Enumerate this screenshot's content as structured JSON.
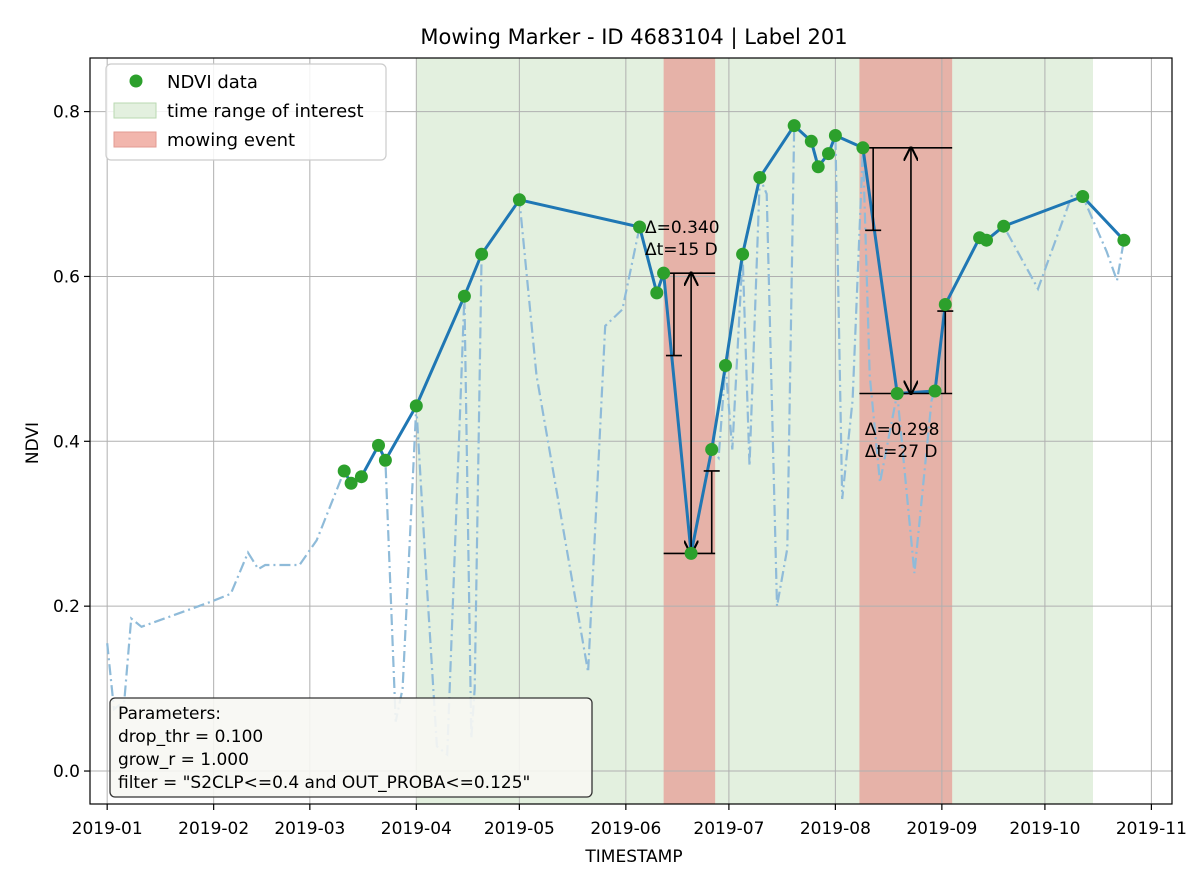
{
  "chart_data": {
    "type": "line",
    "title": "Mowing Marker - ID 4683104 | Label 201",
    "xlabel": "TIMESTAMP",
    "ylabel": "NDVI",
    "xlim": [
      "2018-12-27",
      "2019-11-07"
    ],
    "ylim": [
      -0.04,
      0.865
    ],
    "grid": true,
    "x_ticks": [
      "2019-01-01",
      "2019-02-01",
      "2019-03-01",
      "2019-04-01",
      "2019-05-01",
      "2019-06-01",
      "2019-07-01",
      "2019-08-01",
      "2019-09-01",
      "2019-10-01",
      "2019-11-01"
    ],
    "x_tick_labels": [
      "2019-01",
      "2019-02",
      "2019-03",
      "2019-04",
      "2019-05",
      "2019-06",
      "2019-07",
      "2019-08",
      "2019-09",
      "2019-10",
      "2019-11"
    ],
    "y_ticks": [
      0.0,
      0.2,
      0.4,
      0.6,
      0.8
    ],
    "y_tick_labels": [
      "0.0",
      "0.2",
      "0.4",
      "0.6",
      "0.8"
    ],
    "legend": {
      "placement": "top-left",
      "entries": [
        "NDVI data",
        "time range of interest",
        "mowing event"
      ]
    },
    "colors": {
      "ndvi_line": "#1f77b4",
      "ndvi_marker": "#2ca02c",
      "raw_line": "#8fbbd9",
      "interest": "#e3f0df",
      "mowing": "#e6b2a8",
      "arrow": "#000000"
    },
    "time_range_of_interest": [
      "2019-04-01",
      "2019-10-15"
    ],
    "mowing_events": [
      {
        "start": "2019-06-12",
        "end": "2019-06-27"
      },
      {
        "start": "2019-08-08",
        "end": "2019-09-04"
      }
    ],
    "series": [
      {
        "name": "NDVI data",
        "style": "solid-markers",
        "x": [
          "2019-03-11",
          "2019-03-13",
          "2019-03-16",
          "2019-03-21",
          "2019-03-23",
          "2019-04-01",
          "2019-04-15",
          "2019-04-20",
          "2019-05-01",
          "2019-06-05",
          "2019-06-10",
          "2019-06-12",
          "2019-06-20",
          "2019-06-26",
          "2019-06-30",
          "2019-07-05",
          "2019-07-10",
          "2019-07-20",
          "2019-07-25",
          "2019-07-27",
          "2019-07-30",
          "2019-08-01",
          "2019-08-09",
          "2019-08-19",
          "2019-08-30",
          "2019-09-02",
          "2019-09-12",
          "2019-09-14",
          "2019-09-19",
          "2019-10-12",
          "2019-10-24"
        ],
        "y": [
          0.364,
          0.349,
          0.357,
          0.395,
          0.377,
          0.443,
          0.576,
          0.627,
          0.693,
          0.66,
          0.58,
          0.604,
          0.264,
          0.39,
          0.492,
          0.627,
          0.72,
          0.783,
          0.764,
          0.733,
          0.749,
          0.771,
          0.756,
          0.458,
          0.461,
          0.566,
          0.647,
          0.644,
          0.661,
          0.697,
          0.644
        ]
      },
      {
        "name": "",
        "style": "dash-dot",
        "x": [
          "2019-01-01",
          "2019-01-03",
          "2019-01-06",
          "2019-01-08",
          "2019-01-11",
          "2019-01-31",
          "2019-02-06",
          "2019-02-11",
          "2019-02-14",
          "2019-02-16",
          "2019-02-26",
          "2019-03-03",
          "2019-03-11",
          "2019-03-13",
          "2019-03-16",
          "2019-03-21",
          "2019-03-23",
          "2019-03-26",
          "2019-03-28",
          "2019-04-01",
          "2019-04-04",
          "2019-04-07",
          "2019-04-10",
          "2019-04-15",
          "2019-04-17",
          "2019-04-18",
          "2019-04-20",
          "2019-05-01",
          "2019-05-06",
          "2019-05-21",
          "2019-05-26",
          "2019-05-31",
          "2019-06-05",
          "2019-06-10",
          "2019-06-12",
          "2019-06-20",
          "2019-06-26",
          "2019-06-28",
          "2019-06-30",
          "2019-07-02",
          "2019-07-05",
          "2019-07-07",
          "2019-07-10",
          "2019-07-12",
          "2019-07-15",
          "2019-07-18",
          "2019-07-20",
          "2019-07-25",
          "2019-07-27",
          "2019-07-30",
          "2019-08-01",
          "2019-08-03",
          "2019-08-06",
          "2019-08-09",
          "2019-08-11",
          "2019-08-14",
          "2019-08-19",
          "2019-08-24",
          "2019-08-29",
          "2019-08-30",
          "2019-09-02",
          "2019-09-12",
          "2019-09-14",
          "2019-09-19",
          "2019-09-29",
          "2019-10-09",
          "2019-10-12",
          "2019-10-19",
          "2019-10-22",
          "2019-10-24"
        ],
        "y": [
          0.155,
          0.075,
          0.085,
          0.185,
          0.175,
          0.205,
          0.215,
          0.265,
          0.245,
          0.25,
          0.25,
          0.28,
          0.364,
          0.349,
          0.357,
          0.395,
          0.377,
          0.06,
          0.1,
          0.443,
          0.23,
          0.03,
          0.02,
          0.576,
          0.04,
          0.1,
          0.627,
          0.693,
          0.48,
          0.12,
          0.54,
          0.56,
          0.66,
          0.58,
          0.604,
          0.264,
          0.39,
          0.38,
          0.492,
          0.39,
          0.627,
          0.37,
          0.72,
          0.7,
          0.2,
          0.27,
          0.783,
          0.764,
          0.733,
          0.749,
          0.771,
          0.33,
          0.45,
          0.756,
          0.48,
          0.35,
          0.458,
          0.24,
          0.45,
          0.461,
          0.566,
          0.647,
          0.644,
          0.661,
          0.585,
          0.7,
          0.697,
          0.63,
          0.595,
          0.644
        ]
      }
    ],
    "annotations": [
      {
        "delta_label": "Δ=0.340",
        "dt_label": "Δt=15 D",
        "label_anchor": [
          "2019-06-06",
          0.66
        ],
        "drop_from": 0.604,
        "drop_to": 0.264,
        "hline_from": [
          "2019-06-12",
          "2019-06-27"
        ],
        "hline_to": [
          "2019-06-12",
          "2019-06-27"
        ],
        "arrow_x": "2019-06-20",
        "threshold_bar": {
          "x": "2019-06-15",
          "from": 0.604,
          "to": 0.504
        },
        "grow_bar": {
          "x": "2019-06-26",
          "from": 0.264,
          "to": 0.364
        }
      },
      {
        "delta_label": "Δ=0.298",
        "dt_label": "Δt=27 D",
        "label_anchor": [
          "2019-08-09",
          0.415
        ],
        "drop_from": 0.756,
        "drop_to": 0.458,
        "hline_from": [
          "2019-08-08",
          "2019-09-04"
        ],
        "hline_to": [
          "2019-08-08",
          "2019-09-04"
        ],
        "arrow_x": "2019-08-23",
        "threshold_bar": {
          "x": "2019-08-12",
          "from": 0.756,
          "to": 0.656
        },
        "grow_bar": {
          "x": "2019-09-02",
          "from": 0.458,
          "to": 0.558
        }
      }
    ],
    "parameters_box": {
      "placement": "bottom-left",
      "lines": [
        "Parameters:",
        "drop_thr = 0.100",
        "grow_r = 1.000",
        "filter = \"S2CLP<=0.4 and OUT_PROBA<=0.125\""
      ]
    }
  }
}
